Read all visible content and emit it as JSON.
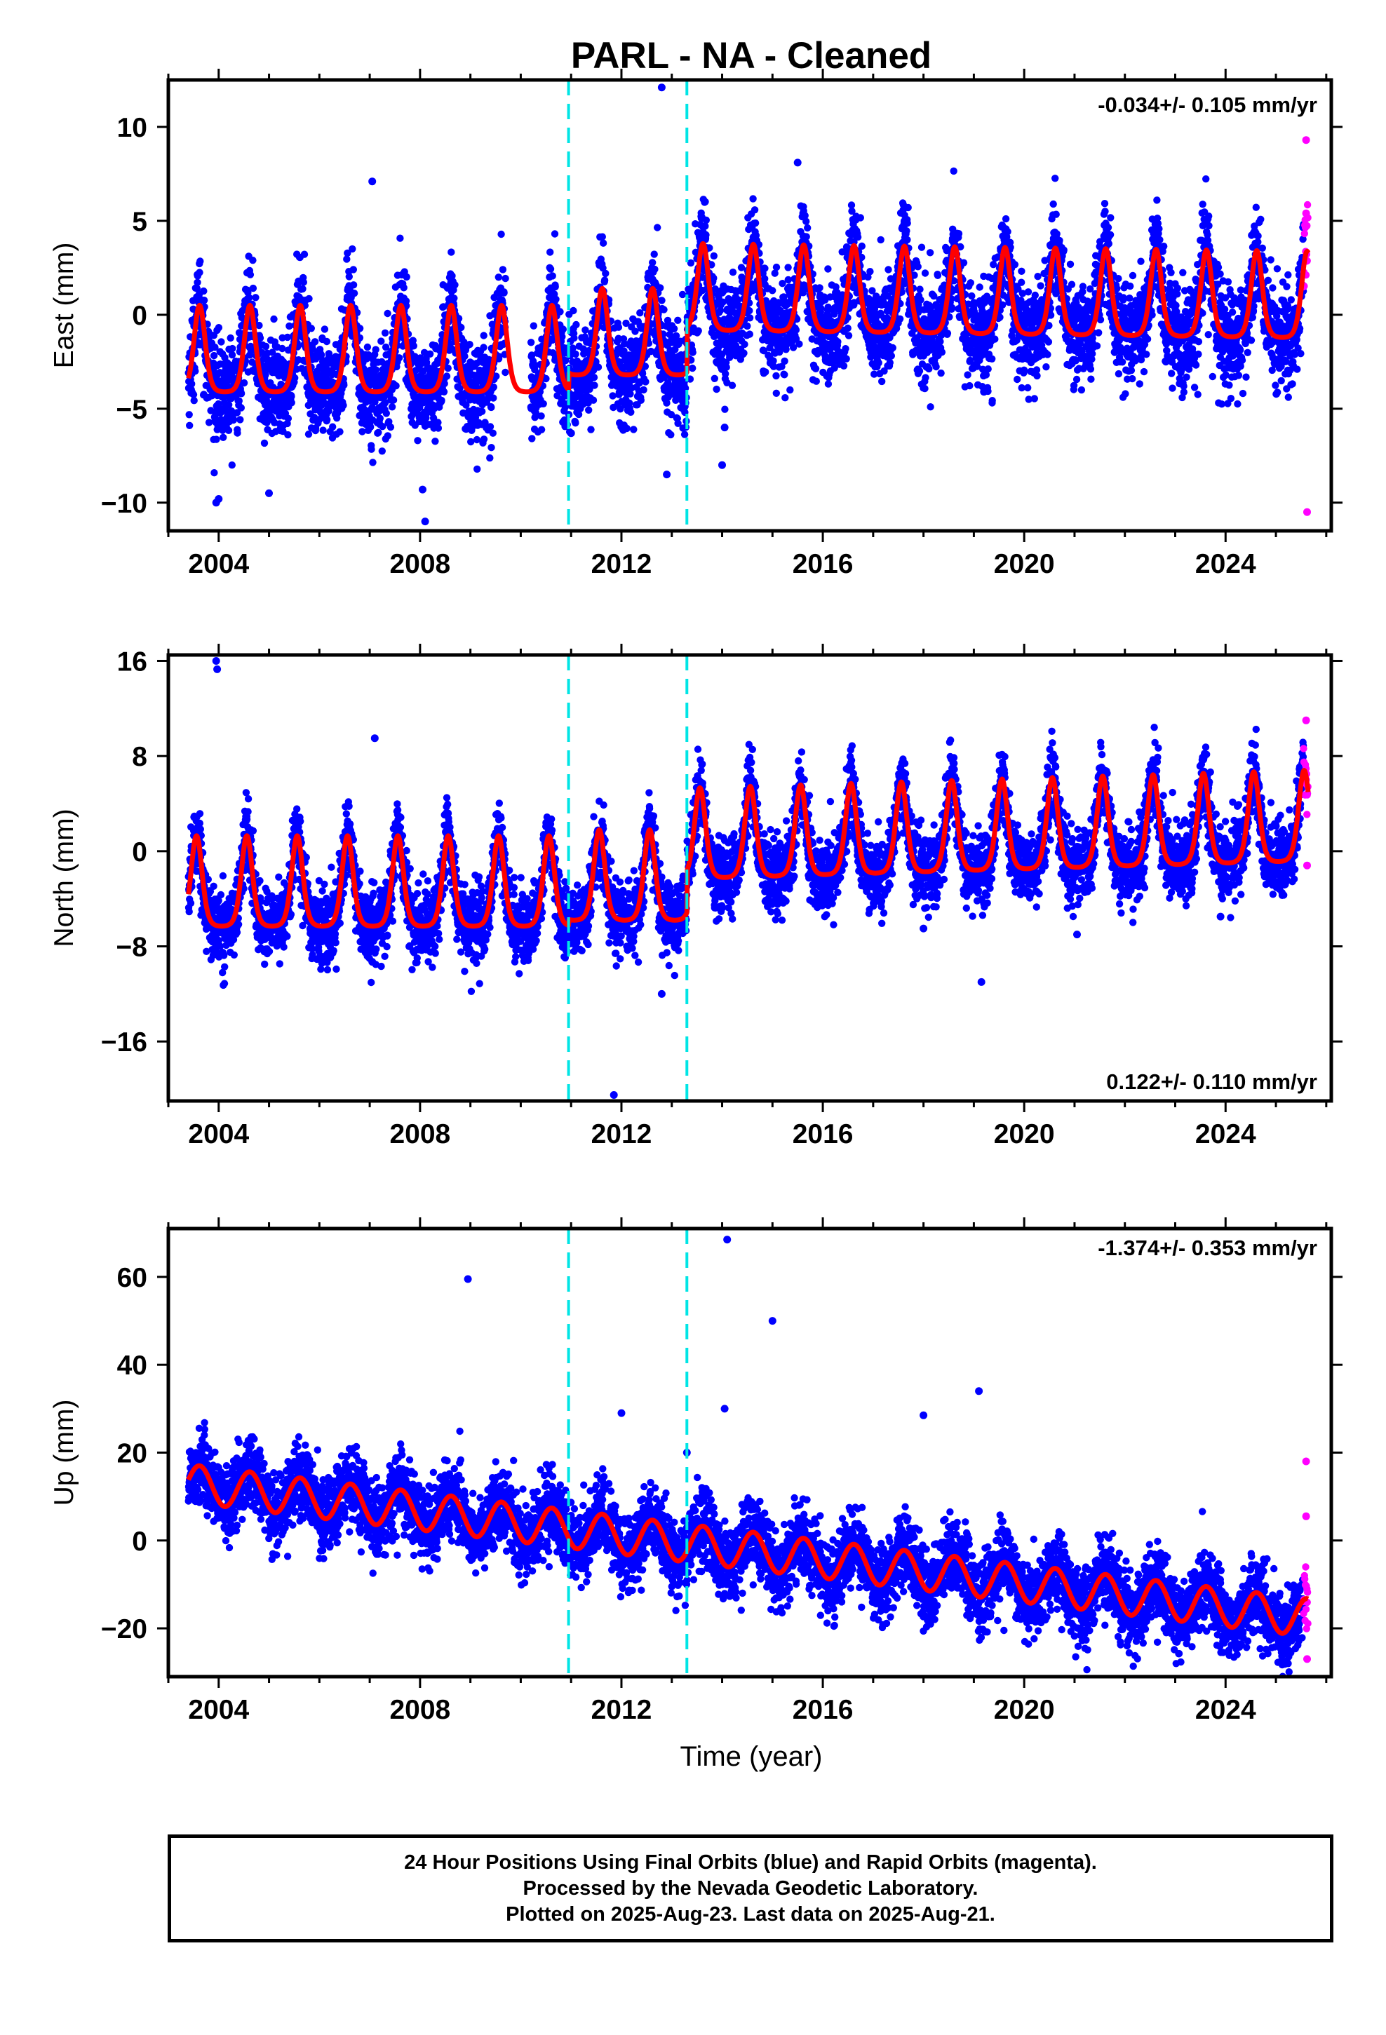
{
  "title": "PARL  - NA - Cleaned",
  "xlabel": "Time (year)",
  "footer": {
    "line1": "24 Hour Positions Using Final Orbits (blue) and Rapid Orbits (magenta).",
    "line2": "Processed by the Nevada Geodetic Laboratory.",
    "line3": "Plotted on 2025-Aug-23. Last data on 2025-Aug-21."
  },
  "colors": {
    "final_orbits": "#0000ff",
    "rapid_orbits": "#ff00ff",
    "model_fit": "#ff0000",
    "step_markers": "#00e5e5"
  },
  "chart_data": [
    {
      "type": "scatter",
      "panel": "east",
      "ylabel": "East (mm)",
      "rate_label": "-0.034+/- 0.105 mm/yr",
      "xlim": [
        2003.0,
        2026.1
      ],
      "ylim": [
        -11.5,
        12.5
      ],
      "xticks": [
        2004,
        2008,
        2012,
        2016,
        2020,
        2024
      ],
      "yticks": [
        -10,
        -5,
        0,
        5,
        10
      ],
      "ytick_labels": [
        "−10",
        "−5",
        "0",
        "5",
        "10"
      ],
      "data_start": 2003.4,
      "data_end": 2025.64,
      "rapid_start": 2025.55,
      "steps": [
        2010.95,
        2013.3
      ],
      "model": {
        "segments": [
          {
            "start": 2003.4,
            "end": 2010.95,
            "offset": -1.8,
            "rate": 0.0
          },
          {
            "start": 2010.95,
            "end": 2013.3,
            "offset": -0.9,
            "rate": 0.0
          },
          {
            "start": 2013.3,
            "end": 2025.64,
            "offset": 1.5,
            "rate": -0.034
          }
        ],
        "amplitude": 2.3,
        "peak_phase": 0.62,
        "sharpness": 2.2,
        "gap": [
          2009.7,
          2010.2
        ]
      },
      "scatter_sd": 1.3,
      "outliers": [
        [
          2003.95,
          -10.0
        ],
        [
          2004.0,
          -9.8
        ],
        [
          2005.0,
          -9.5
        ],
        [
          2007.05,
          7.1
        ],
        [
          2008.1,
          -11.0
        ],
        [
          2008.05,
          -9.3
        ],
        [
          2012.8,
          12.1
        ],
        [
          2012.9,
          -8.5
        ],
        [
          2014.0,
          -8.0
        ],
        [
          2014.05,
          -6.0
        ],
        [
          2011.0,
          -6.3
        ],
        [
          2015.5,
          8.1
        ],
        [
          2019.2,
          -4.1
        ]
      ],
      "rapid_outliers": [
        [
          2025.6,
          9.3
        ],
        [
          2025.6,
          5.4
        ],
        [
          2025.62,
          -10.5
        ]
      ]
    },
    {
      "type": "scatter",
      "panel": "north",
      "ylabel": "North (mm)",
      "rate_label": "0.122+/- 0.110 mm/yr",
      "xlim": [
        2003.0,
        2026.1
      ],
      "ylim": [
        -21.0,
        16.5
      ],
      "xticks": [
        2004,
        2008,
        2012,
        2016,
        2020,
        2024
      ],
      "yticks": [
        -16,
        -8,
        0,
        8,
        16
      ],
      "ytick_labels": [
        "−16",
        "−8",
        "0",
        "8",
        "16"
      ],
      "data_start": 2003.4,
      "data_end": 2025.64,
      "rapid_start": 2025.55,
      "steps": [
        2010.95,
        2013.3
      ],
      "model": {
        "segments": [
          {
            "start": 2003.4,
            "end": 2010.95,
            "offset": -2.5,
            "rate": 0.0
          },
          {
            "start": 2010.95,
            "end": 2013.3,
            "offset": -2.0,
            "rate": 0.0
          },
          {
            "start": 2013.3,
            "end": 2025.64,
            "offset": 1.5,
            "rate": 0.122
          }
        ],
        "amplitude": 3.8,
        "peak_phase": 0.56,
        "sharpness": 2.2,
        "gap": []
      },
      "scatter_sd": 1.5,
      "outliers": [
        [
          2003.95,
          16.0
        ],
        [
          2003.97,
          15.3
        ],
        [
          2007.1,
          9.5
        ],
        [
          2007.05,
          -9.3
        ],
        [
          2011.85,
          -20.5
        ],
        [
          2012.8,
          -12.0
        ],
        [
          2019.15,
          -11.0
        ],
        [
          2021.05,
          -7.0
        ],
        [
          2018.0,
          -6.5
        ],
        [
          2023.9,
          -5.5
        ]
      ],
      "rapid_outliers": [
        [
          2025.6,
          11.0
        ],
        [
          2025.62,
          -1.2
        ]
      ]
    },
    {
      "type": "scatter",
      "panel": "up",
      "ylabel": "Up (mm)",
      "rate_label": "-1.374+/- 0.353 mm/yr",
      "xlim": [
        2003.0,
        2026.1
      ],
      "ylim": [
        -31.0,
        71.0
      ],
      "xticks": [
        2004,
        2008,
        2012,
        2016,
        2020,
        2024
      ],
      "yticks": [
        -20,
        0,
        20,
        40,
        60
      ],
      "ytick_labels": [
        "−20",
        "0",
        "20",
        "40",
        "60"
      ],
      "data_start": 2003.4,
      "data_end": 2025.64,
      "rapid_start": 2025.55,
      "steps": [
        2010.95,
        2013.3
      ],
      "model": {
        "segments": [
          {
            "start": 2003.4,
            "end": 2025.64,
            "offset": 13.0,
            "rate": -1.374
          }
        ],
        "amplitude": 4.3,
        "peak_phase": 0.62,
        "sharpness": 0.0,
        "gap": []
      },
      "scatter_sd": 4.2,
      "outliers": [
        [
          2008.95,
          59.5
        ],
        [
          2014.1,
          68.5
        ],
        [
          2015.0,
          50.0
        ],
        [
          2014.05,
          30.0
        ],
        [
          2012.0,
          29.0
        ],
        [
          2018.0,
          28.5
        ],
        [
          2019.1,
          34.0
        ],
        [
          2013.3,
          20.0
        ]
      ],
      "rapid_outliers": [
        [
          2025.6,
          18.0
        ],
        [
          2025.6,
          5.5
        ],
        [
          2025.62,
          -27.0
        ]
      ]
    }
  ]
}
